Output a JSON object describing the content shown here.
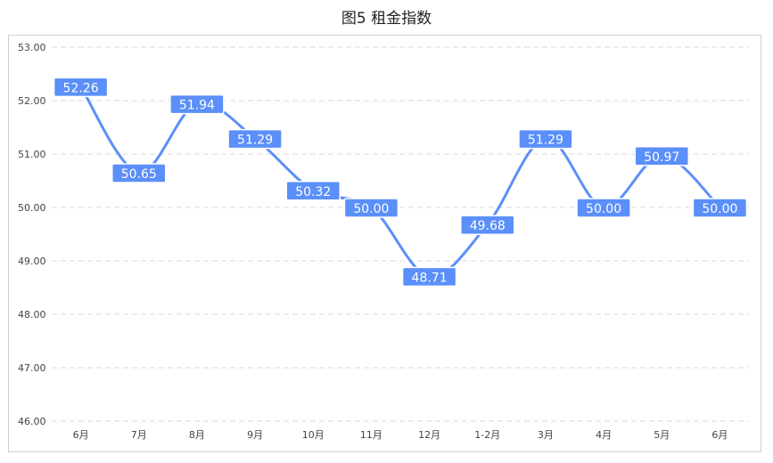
{
  "title": "图5 租金指数",
  "colors": {
    "line": "#5b8ff9",
    "label_bg": "#5b8ff9",
    "grid": "#d9d9d9"
  },
  "chart_data": {
    "type": "line",
    "title": "图5 租金指数",
    "xlabel": "",
    "ylabel": "",
    "categories": [
      "6月",
      "7月",
      "8月",
      "9月",
      "10月",
      "11月",
      "12月",
      "1-2月",
      "3月",
      "4月",
      "5月",
      "6月"
    ],
    "series": [
      {
        "values": [
          52.26,
          50.65,
          51.94,
          51.29,
          50.32,
          50.0,
          48.71,
          49.68,
          51.29,
          50.0,
          50.97,
          50.0
        ]
      }
    ],
    "ylim": [
      46.0,
      53.0
    ],
    "yticks": [
      "46.00",
      "47.00",
      "48.00",
      "49.00",
      "50.00",
      "51.00",
      "52.00",
      "53.00"
    ],
    "data_labels": [
      "52.26",
      "50.65",
      "51.94",
      "51.29",
      "50.32",
      "50.00",
      "48.71",
      "49.68",
      "51.29",
      "50.00",
      "50.97",
      "50.00"
    ],
    "grid": true,
    "smooth": true
  }
}
